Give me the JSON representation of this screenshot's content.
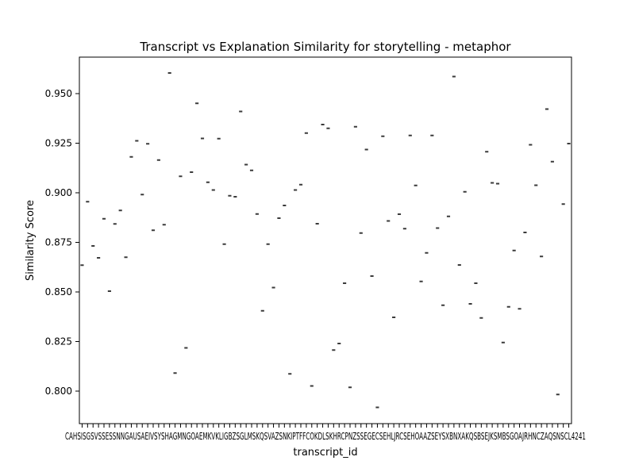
{
  "chart_data": {
    "type": "box",
    "title": "Transcript vs Explanation Similarity for storytelling - metaphor",
    "xlabel": "transcript_id",
    "ylabel": "Similarity Score",
    "ylim": [
      0.7836,
      0.9684
    ],
    "yticks": [
      0.8,
      0.825,
      0.85,
      0.875,
      0.9,
      0.925,
      0.95
    ],
    "ytick_labels": [
      "0.800",
      "0.825",
      "0.850",
      "0.875",
      "0.900",
      "0.925",
      "0.950"
    ],
    "xtick_label_text": "CAHSISGSVSSESSNNGAUSAEIVSYSHAGMNGOAEMKVKLIGBZSGLMSKQSVAZSNKIPTFFCOKDLSKHRCPNZSSEGECSEHLJRCSEHOAAZSEYSXBNXAKQSBSEJKSMBSGOAJRHNCZAQSNSCL4241",
    "marker_color": "#3a3a3a",
    "values": [
      0.8635,
      0.8955,
      0.8732,
      0.8672,
      0.8869,
      0.8504,
      0.8843,
      0.8911,
      0.8675,
      0.9181,
      0.9262,
      0.8991,
      0.9247,
      0.8811,
      0.9165,
      0.8839,
      0.9604,
      0.8091,
      0.9083,
      0.8218,
      0.9104,
      0.9451,
      0.9274,
      0.9053,
      0.9014,
      0.9273,
      0.8741,
      0.8985,
      0.898,
      0.941,
      0.9142,
      0.9113,
      0.8893,
      0.8405,
      0.8741,
      0.8522,
      0.8872,
      0.8936,
      0.8087,
      0.9014,
      0.9041,
      0.9301,
      0.8026,
      0.8844,
      0.9344,
      0.9325,
      0.8207,
      0.824,
      0.8544,
      0.8019,
      0.9333,
      0.8797,
      0.9218,
      0.858,
      0.7918,
      0.9285,
      0.8858,
      0.8372,
      0.8892,
      0.8819,
      0.9289,
      0.9037,
      0.8553,
      0.8697,
      0.9289,
      0.8822,
      0.8433,
      0.8881,
      0.9586,
      0.8636,
      0.9005,
      0.844,
      0.8544,
      0.8369,
      0.9207,
      0.905,
      0.9046,
      0.8245,
      0.8425,
      0.8709,
      0.8415,
      0.88,
      0.9242,
      0.9038,
      0.8679,
      0.9422,
      0.9157,
      0.7983,
      0.8943,
      0.9248
    ]
  }
}
